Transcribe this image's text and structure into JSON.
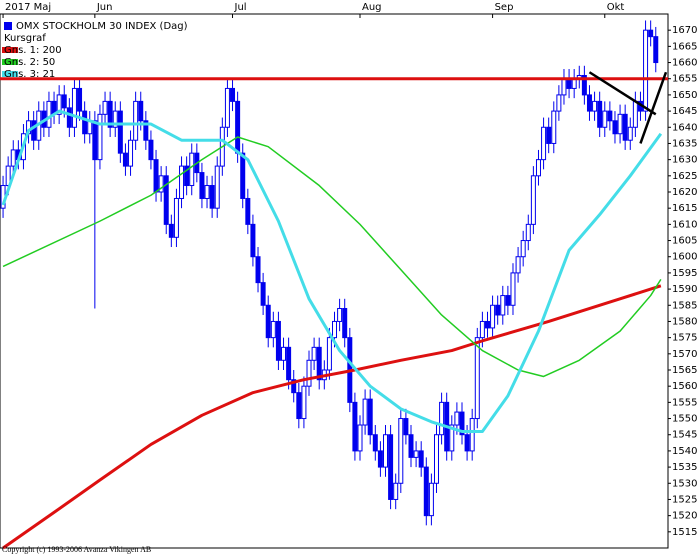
{
  "chart_data": {
    "type": "candlestick",
    "legend_title": "Kursgraf",
    "copyright": "Copyright (c) 1993-2006 Avanza Vikingen AB",
    "xlim": [
      -0.6,
      130.4
    ],
    "xticks": [
      {
        "value": 0,
        "label": "2017 Maj"
      },
      {
        "value": 18,
        "label": "Jun"
      },
      {
        "value": 45,
        "label": "Jul"
      },
      {
        "value": 70,
        "label": "Aug"
      },
      {
        "value": 96,
        "label": "Sep"
      },
      {
        "value": 118,
        "label": "Okt"
      }
    ],
    "ylim": [
      1510,
      1675
    ],
    "yticks": [
      1515,
      1520,
      1525,
      1530,
      1535,
      1540,
      1545,
      1550,
      1555,
      1560,
      1565,
      1570,
      1575,
      1580,
      1585,
      1590,
      1595,
      1600,
      1605,
      1610,
      1615,
      1620,
      1625,
      1630,
      1635,
      1640,
      1645,
      1650,
      1655,
      1660,
      1665,
      1670
    ],
    "series": [
      {
        "name": "OMX STOCKHOLM 30 INDEX (Dag)",
        "type": "candlestick",
        "color": "#0000ee",
        "x": [
          0,
          1,
          2,
          3,
          4,
          5,
          6,
          7,
          8,
          9,
          10,
          11,
          12,
          13,
          14,
          15,
          16,
          17,
          18,
          19,
          20,
          21,
          22,
          23,
          24,
          25,
          26,
          27,
          28,
          29,
          30,
          31,
          32,
          33,
          34,
          35,
          36,
          37,
          38,
          39,
          40,
          41,
          42,
          43,
          44,
          45,
          46,
          47,
          48,
          49,
          50,
          51,
          52,
          53,
          54,
          55,
          56,
          57,
          58,
          59,
          60,
          61,
          62,
          63,
          64,
          65,
          66,
          67,
          68,
          69,
          70,
          71,
          72,
          73,
          74,
          75,
          76,
          77,
          78,
          79,
          80,
          81,
          82,
          83,
          84,
          85,
          86,
          87,
          88,
          89,
          90,
          91,
          92,
          93,
          94,
          95,
          96,
          97,
          98,
          99,
          100,
          101,
          102,
          103,
          104,
          105,
          106,
          107,
          108,
          109,
          110,
          111,
          112,
          113,
          114,
          115,
          116,
          117,
          118,
          119,
          120,
          121,
          122,
          123,
          124,
          125,
          126,
          127,
          128
        ],
        "open": [
          1615,
          1622,
          1628,
          1633,
          1630,
          1638,
          1642,
          1636,
          1645,
          1640,
          1648,
          1644,
          1650,
          1646,
          1640,
          1652,
          1645,
          1638,
          1642,
          1630,
          1644,
          1648,
          1640,
          1645,
          1632,
          1628,
          1636,
          1648,
          1642,
          1636,
          1630,
          1620,
          1625,
          1610,
          1606,
          1618,
          1628,
          1622,
          1632,
          1626,
          1618,
          1622,
          1615,
          1628,
          1640,
          1652,
          1648,
          1632,
          1618,
          1610,
          1600,
          1592,
          1585,
          1575,
          1580,
          1568,
          1572,
          1562,
          1558,
          1550,
          1560,
          1568,
          1572,
          1562,
          1565,
          1575,
          1580,
          1584,
          1575,
          1555,
          1540,
          1548,
          1556,
          1545,
          1540,
          1535,
          1545,
          1525,
          1530,
          1550,
          1545,
          1538,
          1540,
          1535,
          1520,
          1530,
          1545,
          1555,
          1540,
          1548,
          1552,
          1545,
          1540,
          1550,
          1575,
          1580,
          1578,
          1585,
          1582,
          1588,
          1585,
          1595,
          1600,
          1605,
          1610,
          1625,
          1630,
          1640,
          1635,
          1645,
          1650,
          1655,
          1652,
          1655,
          1656,
          1650,
          1645,
          1648,
          1640,
          1645,
          1642,
          1638,
          1644,
          1636,
          1640,
          1648,
          1645,
          1670,
          1668
        ],
        "high": [
          1625,
          1631,
          1636,
          1636,
          1641,
          1645,
          1645,
          1648,
          1648,
          1651,
          1651,
          1653,
          1653,
          1649,
          1655,
          1655,
          1648,
          1645,
          1645,
          1647,
          1651,
          1651,
          1648,
          1648,
          1635,
          1639,
          1651,
          1651,
          1645,
          1639,
          1633,
          1628,
          1628,
          1613,
          1621,
          1631,
          1631,
          1635,
          1635,
          1629,
          1625,
          1625,
          1631,
          1643,
          1655,
          1655,
          1651,
          1635,
          1621,
          1613,
          1603,
          1595,
          1588,
          1583,
          1583,
          1575,
          1575,
          1565,
          1561,
          1563,
          1571,
          1575,
          1575,
          1568,
          1578,
          1583,
          1587,
          1587,
          1578,
          1558,
          1551,
          1559,
          1559,
          1548,
          1543,
          1548,
          1548,
          1533,
          1553,
          1553,
          1548,
          1543,
          1543,
          1538,
          1533,
          1548,
          1558,
          1558,
          1551,
          1555,
          1555,
          1548,
          1553,
          1578,
          1583,
          1583,
          1588,
          1588,
          1591,
          1591,
          1598,
          1603,
          1608,
          1613,
          1628,
          1633,
          1643,
          1643,
          1648,
          1653,
          1658,
          1658,
          1658,
          1659,
          1659,
          1653,
          1651,
          1651,
          1648,
          1648,
          1645,
          1647,
          1647,
          1643,
          1651,
          1651,
          1673,
          1673,
          1671
        ],
        "low": [
          1612,
          1619,
          1625,
          1627,
          1627,
          1635,
          1633,
          1633,
          1637,
          1637,
          1641,
          1641,
          1643,
          1637,
          1637,
          1642,
          1635,
          1635,
          1584,
          1627,
          1641,
          1637,
          1637,
          1629,
          1625,
          1625,
          1633,
          1639,
          1633,
          1627,
          1617,
          1617,
          1607,
          1603,
          1603,
          1615,
          1619,
          1619,
          1623,
          1615,
          1615,
          1612,
          1612,
          1625,
          1637,
          1645,
          1629,
          1615,
          1607,
          1597,
          1589,
          1582,
          1572,
          1572,
          1565,
          1565,
          1559,
          1555,
          1547,
          1547,
          1557,
          1565,
          1559,
          1559,
          1562,
          1572,
          1577,
          1572,
          1552,
          1537,
          1537,
          1545,
          1542,
          1537,
          1532,
          1532,
          1522,
          1522,
          1527,
          1542,
          1535,
          1535,
          1532,
          1517,
          1517,
          1527,
          1542,
          1537,
          1537,
          1545,
          1542,
          1537,
          1537,
          1547,
          1572,
          1575,
          1575,
          1579,
          1579,
          1582,
          1582,
          1592,
          1597,
          1602,
          1607,
          1622,
          1627,
          1632,
          1632,
          1642,
          1647,
          1649,
          1649,
          1652,
          1647,
          1642,
          1642,
          1637,
          1637,
          1639,
          1635,
          1635,
          1633,
          1633,
          1637,
          1642,
          1642,
          1665,
          1657
        ],
        "close": [
          1622,
          1628,
          1633,
          1630,
          1638,
          1642,
          1636,
          1645,
          1640,
          1648,
          1644,
          1650,
          1646,
          1640,
          1652,
          1645,
          1638,
          1642,
          1630,
          1644,
          1648,
          1640,
          1645,
          1632,
          1628,
          1636,
          1648,
          1642,
          1636,
          1630,
          1620,
          1625,
          1610,
          1606,
          1618,
          1628,
          1622,
          1632,
          1626,
          1618,
          1622,
          1615,
          1628,
          1640,
          1652,
          1648,
          1632,
          1618,
          1610,
          1600,
          1592,
          1585,
          1575,
          1580,
          1568,
          1572,
          1562,
          1558,
          1550,
          1560,
          1568,
          1572,
          1562,
          1565,
          1575,
          1580,
          1584,
          1575,
          1555,
          1540,
          1548,
          1556,
          1545,
          1540,
          1535,
          1545,
          1525,
          1530,
          1550,
          1545,
          1538,
          1540,
          1535,
          1520,
          1530,
          1545,
          1555,
          1540,
          1548,
          1552,
          1545,
          1540,
          1550,
          1575,
          1580,
          1578,
          1585,
          1582,
          1588,
          1585,
          1595,
          1600,
          1605,
          1610,
          1625,
          1630,
          1640,
          1635,
          1645,
          1650,
          1655,
          1652,
          1655,
          1656,
          1650,
          1645,
          1648,
          1640,
          1645,
          1642,
          1638,
          1644,
          1636,
          1640,
          1648,
          1645,
          1670,
          1668,
          1660
        ]
      },
      {
        "name": "Gns. 1: 200",
        "type": "line",
        "color": "#dd1010",
        "width": 3,
        "x": [
          0,
          10,
          19,
          29,
          39,
          49,
          59,
          69,
          78,
          88,
          94,
          107,
          121,
          129
        ],
        "values": [
          1510,
          1521,
          1531,
          1542,
          1551,
          1558,
          1562,
          1565,
          1568,
          1571,
          1574,
          1580,
          1587,
          1591
        ]
      },
      {
        "name": "Gns. 2: 50",
        "type": "line",
        "color": "#22cc22",
        "width": 1.5,
        "x": [
          0,
          19,
          29,
          39,
          46,
          52,
          62,
          70,
          78,
          86,
          94,
          101,
          106,
          113,
          121,
          127,
          129
        ],
        "values": [
          1597,
          1611,
          1619,
          1630,
          1637,
          1634,
          1622,
          1610,
          1596,
          1582,
          1571,
          1565,
          1563,
          1568,
          1577,
          1588,
          1593
        ]
      },
      {
        "name": "Gns. 3: 21",
        "type": "line",
        "color": "#44dde8",
        "width": 3,
        "x": [
          0,
          5,
          11,
          19,
          29,
          35,
          43,
          48,
          54,
          60,
          66,
          72,
          78,
          84,
          90,
          94,
          99,
          105,
          111,
          117,
          123,
          129
        ],
        "values": [
          1616,
          1639,
          1645,
          1641,
          1641,
          1636,
          1636,
          1630,
          1611,
          1587,
          1571,
          1560,
          1553,
          1549,
          1546,
          1546,
          1557,
          1577,
          1602,
          1613,
          1625,
          1638
        ]
      }
    ],
    "reference_lines": [
      {
        "value": 1655,
        "color": "#dd1010"
      }
    ],
    "trend_lines": [
      {
        "x": [
          115,
          128
        ],
        "values": [
          1657,
          1644
        ],
        "color": "#000000"
      },
      {
        "x": [
          125,
          130
        ],
        "values": [
          1635,
          1657
        ],
        "color": "#000000"
      }
    ]
  }
}
